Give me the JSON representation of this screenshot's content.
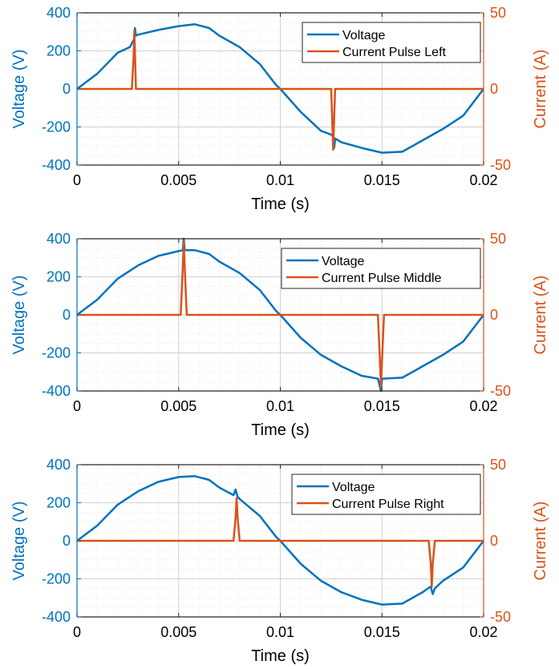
{
  "colors": {
    "voltage": "#0072BD",
    "current": "#D95319",
    "grid": "#d0d0d0",
    "axis": "#262626"
  },
  "chart_data": [
    {
      "type": "line",
      "xlabel": "Time (s)",
      "ylabel_left": "Voltage (V)",
      "ylabel_right": "Current (A)",
      "xlim": [
        0,
        0.02
      ],
      "ylim_left": [
        -400,
        400
      ],
      "ylim_right": [
        -50,
        50
      ],
      "xticks": [
        "0",
        "0.005",
        "0.01",
        "0.015",
        "0.02"
      ],
      "yticks_left": [
        "-400",
        "-200",
        "0",
        "200",
        "400"
      ],
      "yticks_right": [
        "-50",
        "0",
        "50"
      ],
      "grid": true,
      "legend_position": "top-right",
      "series": [
        {
          "name": "Voltage",
          "axis": "left",
          "x": [
            0,
            0.001,
            0.002,
            0.0026,
            0.0028,
            0.00285,
            0.0029,
            0.003,
            0.004,
            0.005,
            0.0058,
            0.0065,
            0.007,
            0.008,
            0.009,
            0.0098,
            0.01,
            0.011,
            0.012,
            0.0125,
            0.0126,
            0.01265,
            0.0127,
            0.013,
            0.014,
            0.015,
            0.016,
            0.017,
            0.018,
            0.019,
            0.02
          ],
          "y": [
            0,
            80,
            190,
            220,
            260,
            320,
            280,
            285,
            310,
            330,
            340,
            320,
            280,
            220,
            130,
            20,
            0,
            -120,
            -220,
            -240,
            -250,
            -310,
            -260,
            -280,
            -310,
            -335,
            -330,
            -270,
            -210,
            -140,
            0
          ]
        },
        {
          "name": "Current Pulse Left",
          "axis": "right",
          "x": [
            0,
            0.0027,
            0.00278,
            0.00282,
            0.00286,
            0.0029,
            0.003,
            0.0125,
            0.01255,
            0.0126,
            0.01265,
            0.0127,
            0.0128,
            0.02
          ],
          "y": [
            0,
            0,
            20,
            38,
            20,
            0,
            0,
            0,
            -18,
            -40,
            -18,
            0,
            0,
            0
          ]
        }
      ]
    },
    {
      "type": "line",
      "xlabel": "Time (s)",
      "ylabel_left": "Voltage (V)",
      "ylabel_right": "Current (A)",
      "xlim": [
        0,
        0.02
      ],
      "ylim_left": [
        -400,
        400
      ],
      "ylim_right": [
        -50,
        50
      ],
      "xticks": [
        "0",
        "0.005",
        "0.01",
        "0.015",
        "0.02"
      ],
      "yticks_left": [
        "-400",
        "-200",
        "0",
        "200",
        "400"
      ],
      "yticks_right": [
        "-50",
        "0",
        "50"
      ],
      "grid": true,
      "legend_position": "top-right",
      "series": [
        {
          "name": "Voltage",
          "axis": "left",
          "x": [
            0,
            0.001,
            0.002,
            0.003,
            0.004,
            0.005,
            0.0052,
            0.00525,
            0.0053,
            0.0058,
            0.0065,
            0.007,
            0.008,
            0.009,
            0.0098,
            0.01,
            0.011,
            0.012,
            0.013,
            0.014,
            0.0148,
            0.01495,
            0.015,
            0.01505,
            0.016,
            0.017,
            0.018,
            0.019,
            0.02
          ],
          "y": [
            0,
            80,
            190,
            260,
            310,
            335,
            340,
            400,
            340,
            340,
            320,
            280,
            220,
            130,
            20,
            0,
            -120,
            -210,
            -270,
            -320,
            -335,
            -400,
            -340,
            -335,
            -330,
            -270,
            -210,
            -140,
            0
          ]
        },
        {
          "name": "Current Pulse Middle",
          "axis": "right",
          "x": [
            0,
            0.0051,
            0.0052,
            0.00525,
            0.0053,
            0.0054,
            0.0056,
            0.0148,
            0.0149,
            0.01495,
            0.015,
            0.0151,
            0.0153,
            0.02
          ],
          "y": [
            0,
            0,
            30,
            48,
            30,
            0,
            0,
            0,
            -30,
            -48,
            -30,
            0,
            0,
            0
          ]
        }
      ]
    },
    {
      "type": "line",
      "xlabel": "Time (s)",
      "ylabel_left": "Voltage (V)",
      "ylabel_right": "Current (A)",
      "xlim": [
        0,
        0.02
      ],
      "ylim_left": [
        -400,
        400
      ],
      "ylim_right": [
        -50,
        50
      ],
      "xticks": [
        "0",
        "0.005",
        "0.01",
        "0.015",
        "0.02"
      ],
      "yticks_left": [
        "-400",
        "-200",
        "0",
        "200",
        "400"
      ],
      "yticks_right": [
        "-50",
        "0",
        "50"
      ],
      "grid": true,
      "legend_position": "top-right",
      "series": [
        {
          "name": "Voltage",
          "axis": "left",
          "x": [
            0,
            0.001,
            0.002,
            0.003,
            0.004,
            0.005,
            0.0058,
            0.0065,
            0.007,
            0.0077,
            0.0078,
            0.0079,
            0.008,
            0.009,
            0.0098,
            0.01,
            0.011,
            0.012,
            0.013,
            0.014,
            0.015,
            0.016,
            0.017,
            0.0174,
            0.0175,
            0.0176,
            0.018,
            0.019,
            0.02
          ],
          "y": [
            0,
            80,
            190,
            260,
            310,
            335,
            340,
            320,
            280,
            240,
            270,
            230,
            220,
            130,
            20,
            0,
            -120,
            -210,
            -270,
            -310,
            -335,
            -330,
            -270,
            -240,
            -280,
            -250,
            -210,
            -140,
            0
          ]
        },
        {
          "name": "Current Pulse Right",
          "axis": "right",
          "x": [
            0,
            0.0077,
            0.0078,
            0.00785,
            0.0079,
            0.008,
            0.0082,
            0.0173,
            0.0174,
            0.01745,
            0.0175,
            0.0176,
            0.0178,
            0.02
          ],
          "y": [
            0,
            0,
            15,
            28,
            15,
            0,
            0,
            0,
            -15,
            -30,
            -15,
            0,
            0,
            0
          ]
        }
      ]
    }
  ]
}
